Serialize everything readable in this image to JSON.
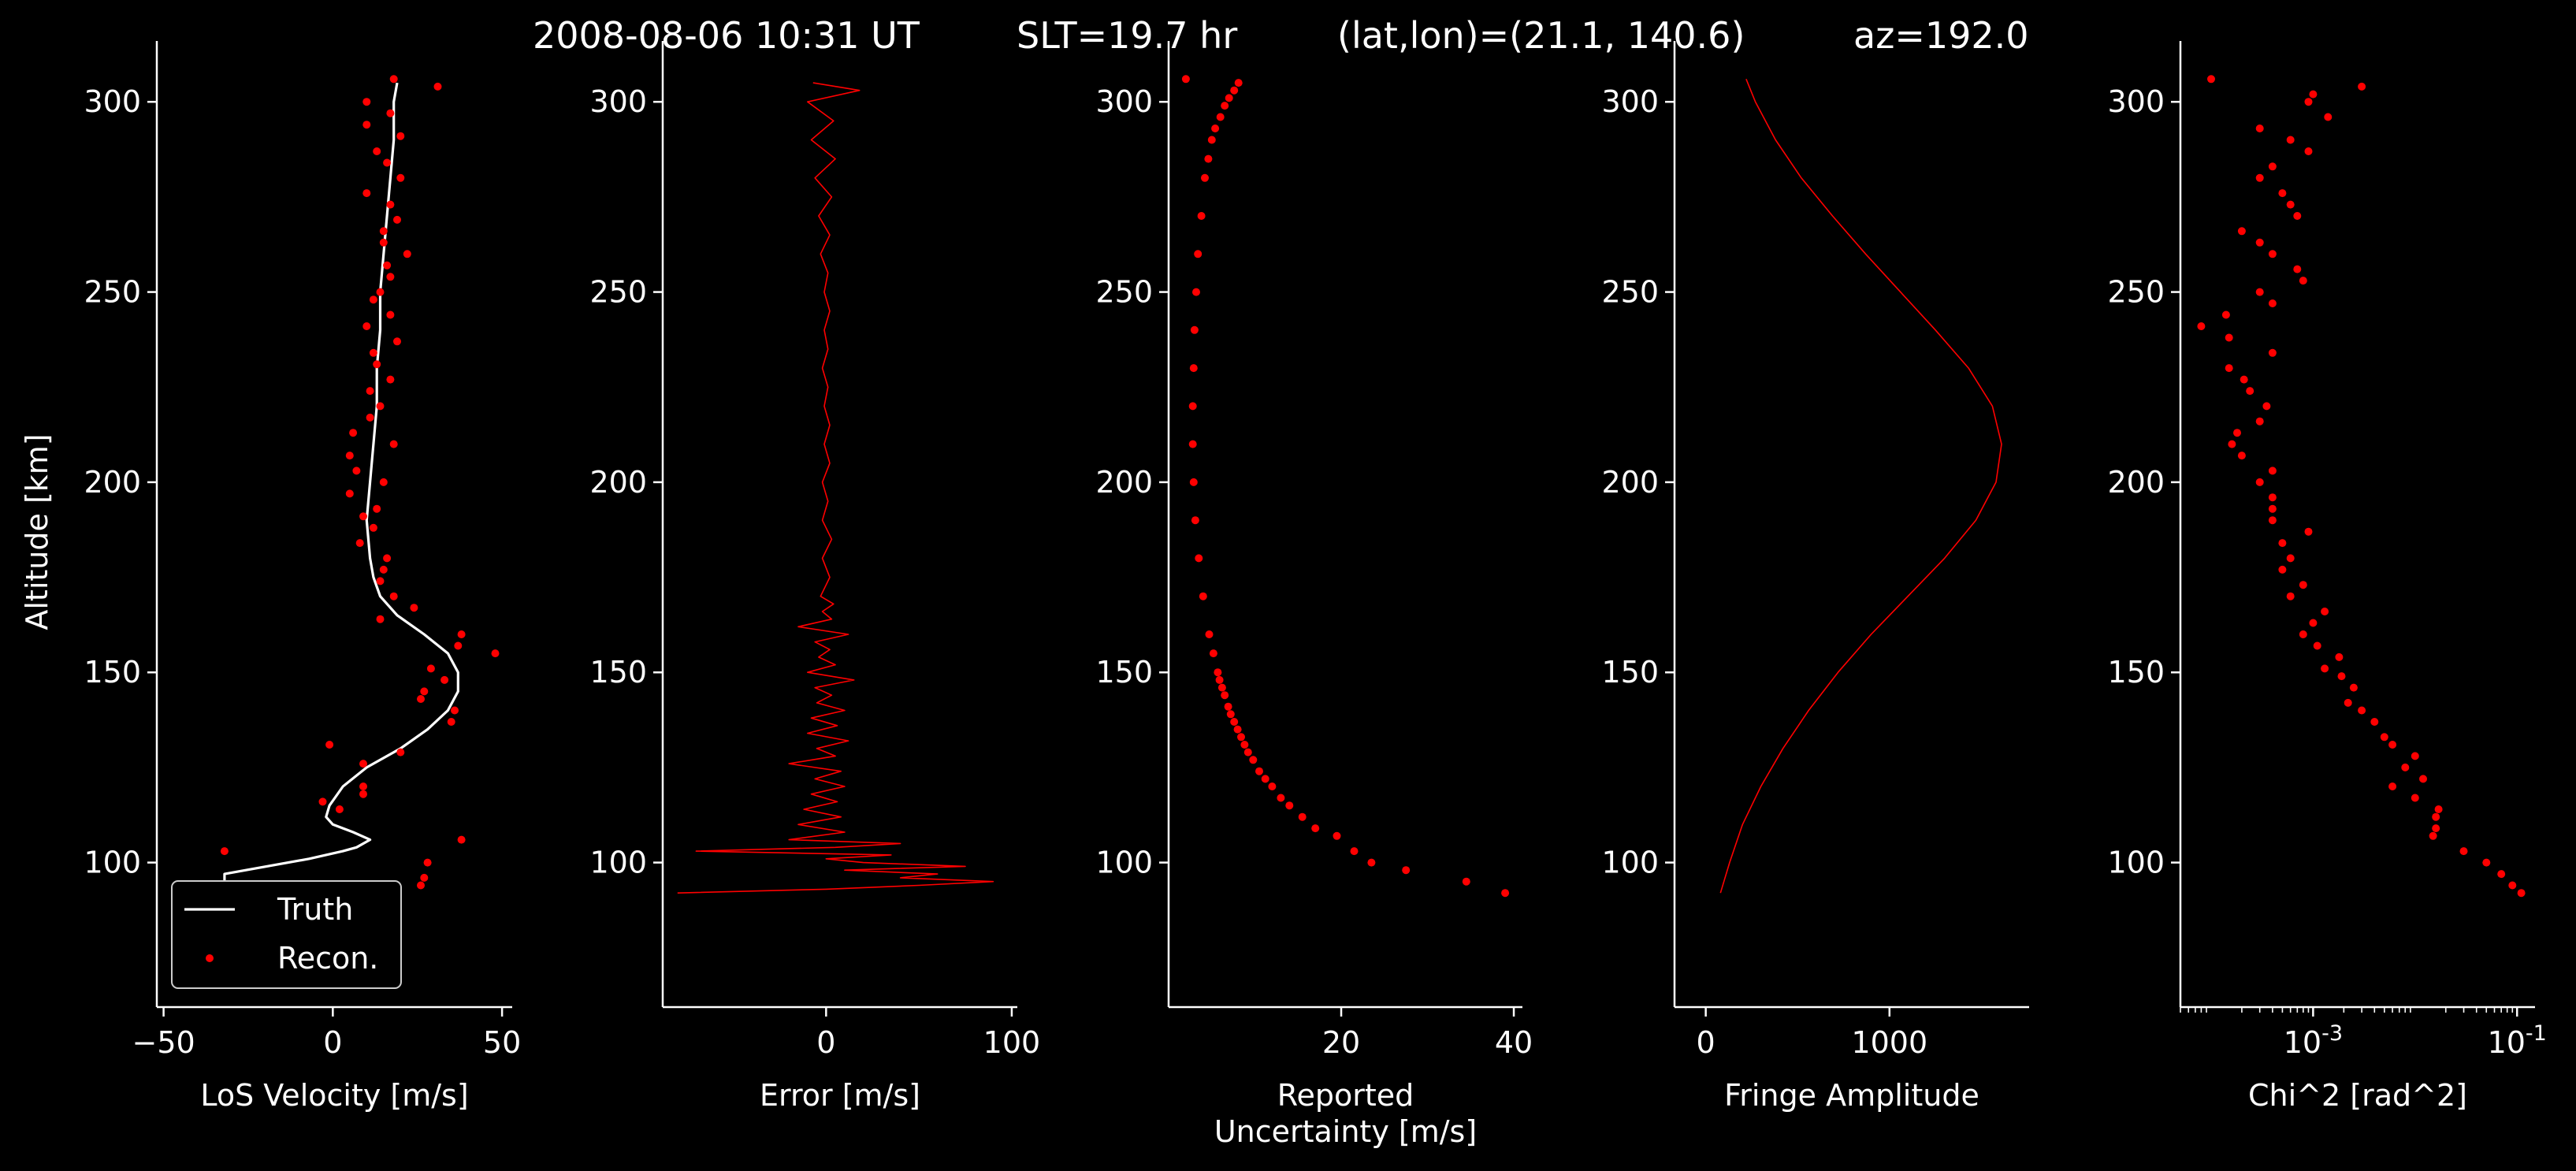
{
  "title": {
    "date": "2008-08-06 10:31 UT",
    "slt": "SLT=19.7 hr",
    "latlon": "(lat,lon)=(21.1, 140.6)",
    "az": "az=192.0"
  },
  "colors": {
    "background": "#000000",
    "axes": "#ffffff",
    "truth": "#ffffff",
    "recon": "#ff0000"
  },
  "chart_data": [
    {
      "type": "line",
      "xlabel": "LoS Velocity [m/s]",
      "ylabel": "Altitude [km]",
      "xlim": [
        -52,
        53
      ],
      "ylim": [
        62,
        316
      ],
      "xticks": [
        -50,
        0,
        50
      ],
      "yticks": [
        100,
        150,
        200,
        250,
        300
      ],
      "legend": {
        "position": "lower-left",
        "entries": [
          "Truth",
          "Recon."
        ]
      },
      "series": [
        {
          "name": "Truth",
          "style": "line",
          "y": [
            92,
            97,
            101,
            103,
            104,
            106,
            108,
            110,
            112,
            115,
            120,
            125,
            130,
            135,
            140,
            145,
            150,
            155,
            160,
            165,
            170,
            175,
            180,
            190,
            200,
            210,
            220,
            230,
            240,
            250,
            260,
            270,
            280,
            290,
            300,
            305
          ],
          "x": [
            -32,
            -32,
            -7,
            3,
            7,
            11,
            6,
            0,
            -2,
            -1,
            3,
            10,
            20,
            28,
            34,
            37,
            37,
            34,
            27,
            19,
            14,
            12,
            11,
            10,
            11,
            12,
            13,
            13,
            14,
            14,
            15,
            16,
            17,
            18,
            18,
            19
          ]
        },
        {
          "name": "Recon.",
          "style": "points",
          "y": [
            94,
            96,
            100,
            103,
            106,
            114,
            116,
            118,
            120,
            126,
            129,
            131,
            137,
            140,
            143,
            145,
            148,
            151,
            155,
            157,
            160,
            164,
            167,
            170,
            174,
            177,
            180,
            184,
            188,
            191,
            193,
            197,
            200,
            203,
            207,
            210,
            213,
            217,
            220,
            224,
            227,
            231,
            234,
            237,
            241,
            244,
            248,
            250,
            254,
            257,
            260,
            263,
            266,
            269,
            273,
            276,
            280,
            284,
            287,
            291,
            294,
            297,
            300,
            304,
            306
          ],
          "x": [
            26,
            27,
            28,
            -32,
            38,
            2,
            -3,
            9,
            9,
            9,
            20,
            -1,
            35,
            36,
            26,
            27,
            33,
            29,
            48,
            37,
            38,
            14,
            24,
            18,
            14,
            15,
            16,
            8,
            12,
            9,
            13,
            5,
            15,
            7,
            5,
            18,
            6,
            11,
            14,
            11,
            17,
            13,
            12,
            19,
            10,
            17,
            12,
            14,
            17,
            16,
            22,
            15,
            15,
            19,
            17,
            10,
            20,
            16,
            13,
            20,
            10,
            17,
            10,
            31,
            18
          ]
        }
      ]
    },
    {
      "type": "line",
      "xlabel": "Error [m/s]",
      "xlim": [
        -88,
        103
      ],
      "ylim": [
        62,
        316
      ],
      "xticks": [
        0,
        100
      ],
      "yticks": [
        100,
        150,
        200,
        250,
        300
      ],
      "series": [
        {
          "name": "",
          "style": "line",
          "y": [
            92,
            93,
            94,
            95,
            96,
            97,
            98,
            99,
            100,
            101,
            102,
            103,
            104,
            105,
            106,
            108,
            110,
            112,
            114,
            116,
            118,
            120,
            122,
            124,
            126,
            128,
            130,
            132,
            134,
            136,
            138,
            140,
            142,
            144,
            146,
            148,
            150,
            152,
            154,
            156,
            158,
            160,
            162,
            164,
            166,
            168,
            170,
            175,
            180,
            185,
            190,
            195,
            200,
            205,
            210,
            215,
            220,
            225,
            230,
            235,
            240,
            245,
            250,
            255,
            260,
            265,
            270,
            275,
            280,
            285,
            290,
            295,
            300,
            303,
            305
          ],
          "x": [
            -80,
            0,
            50,
            90,
            40,
            60,
            10,
            75,
            20,
            0,
            35,
            -70,
            5,
            40,
            -20,
            10,
            -15,
            8,
            -12,
            6,
            -8,
            10,
            -6,
            8,
            -20,
            5,
            -5,
            12,
            -10,
            6,
            -8,
            10,
            -5,
            3,
            -6,
            15,
            -10,
            5,
            -4,
            2,
            -6,
            12,
            -15,
            3,
            -2,
            4,
            -3,
            2,
            -2,
            3,
            -2,
            1,
            -2,
            2,
            -1,
            2,
            -1,
            1,
            -2,
            1,
            -1,
            2,
            -1,
            1,
            -3,
            2,
            -4,
            3,
            -6,
            5,
            -8,
            4,
            -10,
            18,
            -7
          ]
        }
      ]
    },
    {
      "type": "scatter",
      "xlabel": "Reported\nUncertainty [m/s]",
      "xlim": [
        0,
        41
      ],
      "ylim": [
        62,
        316
      ],
      "xticks": [
        20,
        40
      ],
      "yticks": [
        100,
        150,
        200,
        250,
        300
      ],
      "series": [
        {
          "name": "",
          "style": "points",
          "y": [
            92,
            95,
            98,
            100,
            103,
            107,
            109,
            112,
            115,
            117,
            120,
            122,
            124,
            127,
            129,
            131,
            133,
            135,
            137,
            139,
            141,
            144,
            146,
            148,
            150,
            155,
            160,
            170,
            180,
            190,
            200,
            210,
            220,
            230,
            240,
            250,
            260,
            270,
            280,
            285,
            290,
            293,
            296,
            299,
            301,
            303,
            305,
            306
          ],
          "x": [
            39,
            34.5,
            27.5,
            23.5,
            21.5,
            19.5,
            17,
            15.5,
            14,
            13,
            12,
            11.2,
            10.5,
            9.8,
            9.2,
            8.8,
            8.4,
            8,
            7.6,
            7.2,
            6.9,
            6.5,
            6.2,
            5.9,
            5.7,
            5.2,
            4.7,
            4,
            3.5,
            3.1,
            2.9,
            2.8,
            2.8,
            2.9,
            3,
            3.2,
            3.4,
            3.8,
            4.2,
            4.6,
            5,
            5.4,
            6,
            6.5,
            7,
            7.6,
            8.1,
            2
          ]
        }
      ]
    },
    {
      "type": "line",
      "xlabel": "Fringe Amplitude",
      "xlim": [
        -170,
        1760
      ],
      "ylim": [
        62,
        316
      ],
      "xticks": [
        0,
        1000
      ],
      "yticks": [
        100,
        150,
        200,
        250,
        300
      ],
      "series": [
        {
          "name": "",
          "style": "line",
          "y": [
            92,
            100,
            110,
            120,
            130,
            140,
            150,
            160,
            170,
            180,
            190,
            200,
            210,
            220,
            230,
            240,
            250,
            260,
            270,
            280,
            290,
            300,
            306
          ],
          "x": [
            80,
            130,
            200,
            300,
            420,
            560,
            720,
            900,
            1100,
            1300,
            1470,
            1580,
            1610,
            1560,
            1430,
            1250,
            1060,
            870,
            690,
            520,
            380,
            270,
            220
          ]
        }
      ]
    },
    {
      "type": "scatter",
      "xlabel": "Chi^2 [rad^2]",
      "xscale": "log",
      "xlim": [
        5e-05,
        0.15
      ],
      "ylim": [
        62,
        316
      ],
      "xticks": [
        0.001,
        0.1
      ],
      "xticklabels": [
        "10^-3",
        "10^-1"
      ],
      "yticks": [
        100,
        150,
        200,
        250,
        300
      ],
      "series": [
        {
          "name": "",
          "style": "points",
          "y": [
            92,
            94,
            97,
            100,
            103,
            107,
            109,
            112,
            114,
            117,
            120,
            122,
            125,
            128,
            131,
            133,
            137,
            140,
            142,
            146,
            149,
            151,
            154,
            157,
            160,
            163,
            166,
            170,
            173,
            177,
            180,
            184,
            187,
            190,
            193,
            196,
            200,
            203,
            207,
            210,
            213,
            216,
            220,
            224,
            227,
            230,
            234,
            238,
            241,
            244,
            247,
            250,
            253,
            256,
            260,
            263,
            266,
            270,
            273,
            276,
            280,
            283,
            287,
            290,
            293,
            296,
            300,
            302,
            304,
            306
          ],
          "x": [
            0.11,
            0.09,
            0.07,
            0.05,
            0.03,
            0.015,
            0.016,
            0.016,
            0.017,
            0.01,
            0.006,
            0.012,
            0.008,
            0.01,
            0.006,
            0.005,
            0.004,
            0.003,
            0.0022,
            0.0025,
            0.0019,
            0.0013,
            0.0018,
            0.0011,
            0.0008,
            0.001,
            0.0013,
            0.0006,
            0.0008,
            0.0005,
            0.0006,
            0.0005,
            0.0009,
            0.0004,
            0.0004,
            0.0004,
            0.0003,
            0.0004,
            0.0002,
            0.00016,
            0.00018,
            0.0003,
            0.00035,
            0.00024,
            0.00021,
            0.00015,
            0.0004,
            0.00015,
            8e-05,
            0.00014,
            0.0004,
            0.0003,
            0.0008,
            0.0007,
            0.0004,
            0.0003,
            0.0002,
            0.0007,
            0.0006,
            0.0005,
            0.0003,
            0.0004,
            0.0009,
            0.0006,
            0.0003,
            0.0014,
            0.0009,
            0.001,
            0.003,
            0.0001
          ]
        }
      ]
    }
  ]
}
